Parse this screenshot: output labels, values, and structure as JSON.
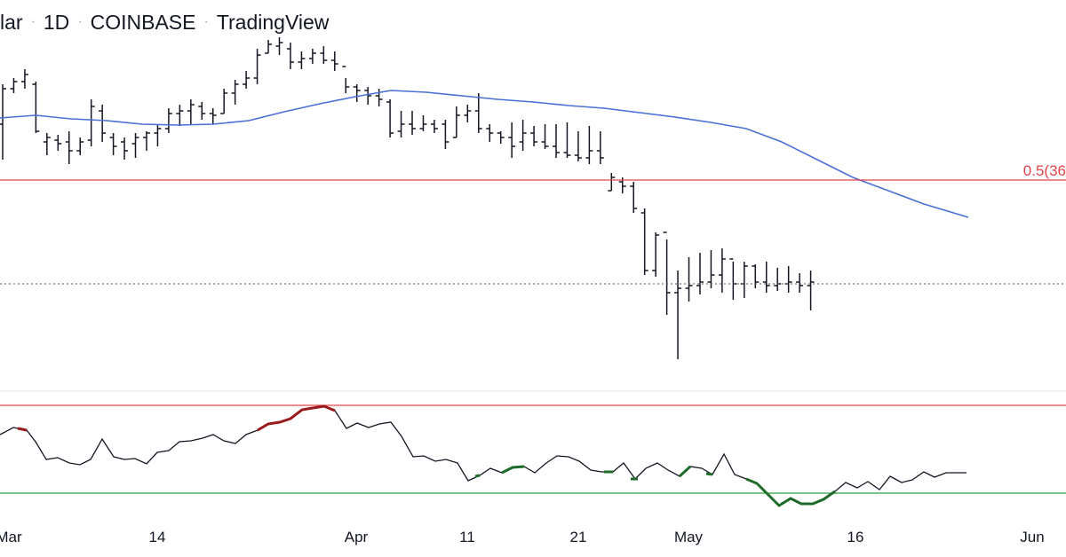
{
  "header": {
    "symbol_fragment": "lar",
    "interval": "1D",
    "exchange": "COINBASE",
    "brand": "TradingView"
  },
  "chart_data": [
    {
      "type": "ohlc",
      "description_role": "price panel",
      "bar_color": "#131722",
      "moving_average_color": "#4a6fd6",
      "fib_line": {
        "label": "0.5(36",
        "color": "#e0454a"
      },
      "last_price_line_style": "dotted",
      "x_tick_labels": [
        "Mar",
        "14",
        "Apr",
        "11",
        "21",
        "May",
        "16",
        "Jun"
      ]
    },
    {
      "type": "line",
      "description_role": "oscillator panel",
      "line_color": "#131722",
      "overbought_color": "#e0454a",
      "oversold_color": "#2e9e3e",
      "overbought_segment_color": "#9b1c1c",
      "oversold_segment_color": "#1e6b2a"
    }
  ]
}
